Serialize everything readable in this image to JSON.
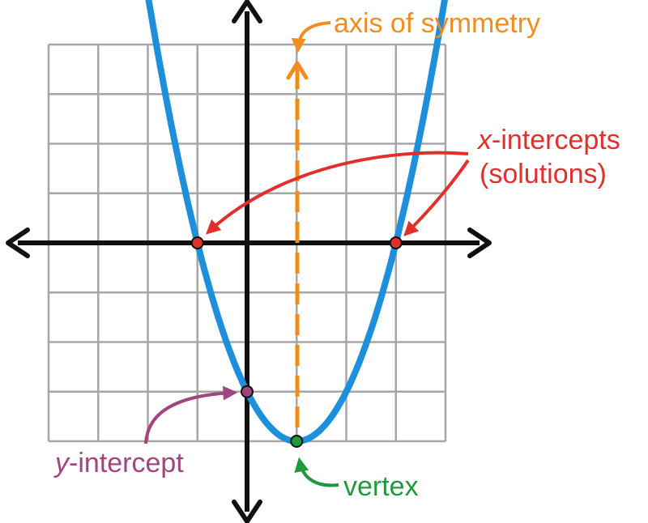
{
  "labels": {
    "axis_of_symmetry": "axis of symmetry",
    "x_intercepts_var": "x",
    "x_intercepts_rest": "-intercepts",
    "solutions": "(solutions)",
    "y_intercept_var": "y",
    "y_intercept_rest": "-intercept",
    "vertex": "vertex"
  },
  "colors": {
    "grid": "#a6a6a6",
    "axes": "#111111",
    "parabola": "#1d8fdb",
    "axis_of_symmetry": "#f28c1e",
    "x_intercepts": "#e0302c",
    "y_intercept": "#a0457d",
    "vertex": "#1e9a3c"
  },
  "chart_data": {
    "type": "line",
    "grid_range": {
      "x": [
        -4,
        4
      ],
      "y": [
        -4,
        4
      ]
    },
    "grid": true,
    "parabola": {
      "equation_form": "y = (x - 1)^2 - 4",
      "vertex": [
        1,
        -4
      ]
    },
    "axis_of_symmetry_x": 1,
    "x_intercepts": [
      [
        -1,
        0
      ],
      [
        3,
        0
      ]
    ],
    "y_intercept": [
      0,
      -3
    ],
    "vertex_point": [
      1,
      -4
    ]
  }
}
